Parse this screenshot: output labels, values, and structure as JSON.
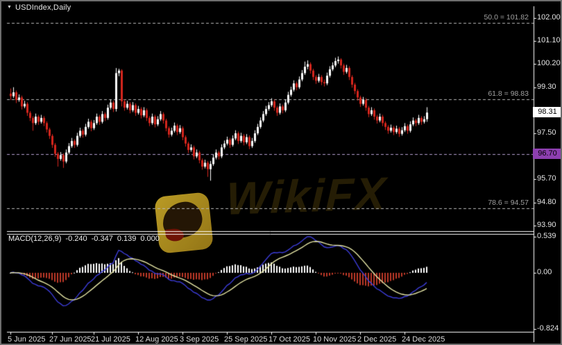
{
  "window": {
    "title": "USDIndex,Daily",
    "dropdown_icon": "▼"
  },
  "watermark": {
    "text": "WikiFX"
  },
  "colors": {
    "background": "#000000",
    "frame": "#6e6e6e",
    "panel_border": "#ffffff",
    "bull": "#ffffff",
    "bear": "#d6261d",
    "fib_line": "#b8b8b8",
    "fib_text": "#a0a0a0",
    "level_line": "#b49fd0",
    "level_badge_bg": "#8d3fb0",
    "price_badge_bg": "#ffffff",
    "axis_text": "#e4e4e4",
    "macd_line": "#3c3cd8",
    "macd_signal": "#e6e6a6",
    "hist_pos": "#ffffff",
    "hist_neg": "#bf3a28"
  },
  "chart_data": {
    "type": "candlestick",
    "symbol": "USDIndex",
    "timeframe": "Daily",
    "price_axis_ticks": [
      {
        "text": "102.00",
        "price": 102.0
      },
      {
        "text": "101.10",
        "price": 101.1
      },
      {
        "text": "100.20",
        "price": 100.2
      },
      {
        "text": "99.30",
        "price": 99.3
      },
      {
        "text": "97.50",
        "price": 97.5
      },
      {
        "text": "96.60",
        "price": 96.6
      },
      {
        "text": "95.70",
        "price": 95.7
      },
      {
        "text": "94.80",
        "price": 94.8
      },
      {
        "text": "93.90",
        "price": 93.9
      }
    ],
    "time_axis_ticks": [
      {
        "text": "5 Jun 2025",
        "index": 0
      },
      {
        "text": "27 Jun 2025",
        "index": 15
      },
      {
        "text": "21 Jul 2025",
        "index": 30
      },
      {
        "text": "12 Aug 2025",
        "index": 46
      },
      {
        "text": "3 Sep 2025",
        "index": 62
      },
      {
        "text": "25 Sep 2025",
        "index": 78
      },
      {
        "text": "17 Oct 2025",
        "index": 94
      },
      {
        "text": "10 Nov 2025",
        "index": 110
      },
      {
        "text": "2 Dec 2025",
        "index": 126
      },
      {
        "text": "24 Dec 2025",
        "index": 142
      }
    ],
    "fib_levels": [
      {
        "text": "50.0 = 101.82",
        "price": 101.82
      },
      {
        "text": "61.8 = 98.83",
        "price": 98.83
      },
      {
        "text": "78.6 = 94.57",
        "price": 94.57
      }
    ],
    "level_line": {
      "text": "96.70",
      "price": 96.7
    },
    "current_price": {
      "text": "98.31",
      "price": 98.31
    },
    "ylim": [
      93.7,
      102.14
    ],
    "candles": [
      [
        99.05,
        99.25,
        98.8,
        98.95
      ],
      [
        98.95,
        99.3,
        98.88,
        99.1
      ],
      [
        99.1,
        99.17,
        98.68,
        98.8
      ],
      [
        98.8,
        99.02,
        98.73,
        98.9
      ],
      [
        98.9,
        98.97,
        98.43,
        98.55
      ],
      [
        98.55,
        98.77,
        98.48,
        98.65
      ],
      [
        98.65,
        98.72,
        98.18,
        98.3
      ],
      [
        98.3,
        98.37,
        97.98,
        98.1
      ],
      [
        98.1,
        98.17,
        97.6,
        97.9
      ],
      [
        97.9,
        98.27,
        97.83,
        98.15
      ],
      [
        98.15,
        98.22,
        97.83,
        97.95
      ],
      [
        97.95,
        98.22,
        97.88,
        98.1
      ],
      [
        98.1,
        98.17,
        97.78,
        97.9
      ],
      [
        97.9,
        97.97,
        97.53,
        97.65
      ],
      [
        97.65,
        97.72,
        97.28,
        97.4
      ],
      [
        97.4,
        97.47,
        96.93,
        97.05
      ],
      [
        97.05,
        97.12,
        96.58,
        96.7
      ],
      [
        96.7,
        96.77,
        96.2,
        96.5
      ],
      [
        96.5,
        96.77,
        96.43,
        96.65
      ],
      [
        96.65,
        96.72,
        96.15,
        96.4
      ],
      [
        96.4,
        96.87,
        96.33,
        96.75
      ],
      [
        96.75,
        97.12,
        96.68,
        97.0
      ],
      [
        97.0,
        97.32,
        96.93,
        97.2
      ],
      [
        97.2,
        97.27,
        96.93,
        97.05
      ],
      [
        97.05,
        97.52,
        96.98,
        97.4
      ],
      [
        97.4,
        97.72,
        97.33,
        97.6
      ],
      [
        97.6,
        97.67,
        97.33,
        97.45
      ],
      [
        97.45,
        97.87,
        97.38,
        97.75
      ],
      [
        97.75,
        98.07,
        97.68,
        97.95
      ],
      [
        97.95,
        98.02,
        97.58,
        97.7
      ],
      [
        97.7,
        98.02,
        97.63,
        97.9
      ],
      [
        97.9,
        98.27,
        97.83,
        98.15
      ],
      [
        98.15,
        98.22,
        97.83,
        97.95
      ],
      [
        97.95,
        98.37,
        97.88,
        98.25
      ],
      [
        98.25,
        98.32,
        97.98,
        98.1
      ],
      [
        98.1,
        98.62,
        98.03,
        98.5
      ],
      [
        98.5,
        98.82,
        98.43,
        98.7
      ],
      [
        98.7,
        98.77,
        98.33,
        98.45
      ],
      [
        98.45,
        100.05,
        98.35,
        99.85
      ],
      [
        99.85,
        100.02,
        99.73,
        99.95
      ],
      [
        99.95,
        100.0,
        98.55,
        98.75
      ],
      [
        98.75,
        98.82,
        98.38,
        98.5
      ],
      [
        98.5,
        98.77,
        98.43,
        98.65
      ],
      [
        98.65,
        98.72,
        98.28,
        98.4
      ],
      [
        98.4,
        98.72,
        98.33,
        98.6
      ],
      [
        98.6,
        98.67,
        98.18,
        98.3
      ],
      [
        98.3,
        98.57,
        98.23,
        98.45
      ],
      [
        98.45,
        98.52,
        98.08,
        98.2
      ],
      [
        98.2,
        98.52,
        98.13,
        98.4
      ],
      [
        98.4,
        98.47,
        97.98,
        98.1
      ],
      [
        98.1,
        98.17,
        97.78,
        97.9
      ],
      [
        97.9,
        98.27,
        97.83,
        98.15
      ],
      [
        98.15,
        98.22,
        97.73,
        97.85
      ],
      [
        97.85,
        98.17,
        97.78,
        98.05
      ],
      [
        98.05,
        98.37,
        97.98,
        98.25
      ],
      [
        98.25,
        98.32,
        97.88,
        98.0
      ],
      [
        98.0,
        98.07,
        97.58,
        97.7
      ],
      [
        97.7,
        97.77,
        97.33,
        97.45
      ],
      [
        97.45,
        97.72,
        97.38,
        97.6
      ],
      [
        97.6,
        97.92,
        97.53,
        97.8
      ],
      [
        97.8,
        97.87,
        97.43,
        97.55
      ],
      [
        97.55,
        97.82,
        97.48,
        97.7
      ],
      [
        97.7,
        97.77,
        97.23,
        97.35
      ],
      [
        97.35,
        97.42,
        96.98,
        97.1
      ],
      [
        97.1,
        97.17,
        96.73,
        96.85
      ],
      [
        96.85,
        97.07,
        96.78,
        96.95
      ],
      [
        96.95,
        97.02,
        96.48,
        96.6
      ],
      [
        96.6,
        96.87,
        96.53,
        96.75
      ],
      [
        96.75,
        96.82,
        96.33,
        96.45
      ],
      [
        96.45,
        96.52,
        96.08,
        96.2
      ],
      [
        96.2,
        96.47,
        96.13,
        96.35
      ],
      [
        96.35,
        96.42,
        95.8,
        96.1
      ],
      [
        96.1,
        96.42,
        95.65,
        96.3
      ],
      [
        96.3,
        96.67,
        96.23,
        96.55
      ],
      [
        96.55,
        96.87,
        96.48,
        96.75
      ],
      [
        96.75,
        96.82,
        96.48,
        96.6
      ],
      [
        96.6,
        97.07,
        96.53,
        96.95
      ],
      [
        96.95,
        97.22,
        96.88,
        97.1
      ],
      [
        97.1,
        97.37,
        97.03,
        97.25
      ],
      [
        97.25,
        97.32,
        96.93,
        97.05
      ],
      [
        97.05,
        97.42,
        96.98,
        97.3
      ],
      [
        97.3,
        97.62,
        97.23,
        97.5
      ],
      [
        97.5,
        97.57,
        97.08,
        97.2
      ],
      [
        97.2,
        97.52,
        97.13,
        97.4
      ],
      [
        97.4,
        97.47,
        97.03,
        97.15
      ],
      [
        97.15,
        97.47,
        97.08,
        97.35
      ],
      [
        97.35,
        97.42,
        96.88,
        97.0
      ],
      [
        97.0,
        97.32,
        96.93,
        97.2
      ],
      [
        97.2,
        97.62,
        97.13,
        97.5
      ],
      [
        97.5,
        97.87,
        97.43,
        97.75
      ],
      [
        97.75,
        98.12,
        97.68,
        98.0
      ],
      [
        98.0,
        98.37,
        97.93,
        98.25
      ],
      [
        98.25,
        98.57,
        98.18,
        98.45
      ],
      [
        98.45,
        98.72,
        98.38,
        98.6
      ],
      [
        98.6,
        98.87,
        98.53,
        98.75
      ],
      [
        98.75,
        98.82,
        98.38,
        98.5
      ],
      [
        98.5,
        98.57,
        98.18,
        98.3
      ],
      [
        98.3,
        98.67,
        98.23,
        98.55
      ],
      [
        98.55,
        98.62,
        98.28,
        98.4
      ],
      [
        98.4,
        98.82,
        98.33,
        98.7
      ],
      [
        98.7,
        99.12,
        98.63,
        99.0
      ],
      [
        99.0,
        99.32,
        98.93,
        99.2
      ],
      [
        99.2,
        99.57,
        99.13,
        99.45
      ],
      [
        99.45,
        99.52,
        99.18,
        99.3
      ],
      [
        99.3,
        99.72,
        99.23,
        99.6
      ],
      [
        99.6,
        99.97,
        99.53,
        99.85
      ],
      [
        99.85,
        100.3,
        99.78,
        100.1
      ],
      [
        100.1,
        100.35,
        100.0,
        100.2
      ],
      [
        100.2,
        100.27,
        99.83,
        99.95
      ],
      [
        99.95,
        100.02,
        99.58,
        99.7
      ],
      [
        99.7,
        99.77,
        99.43,
        99.55
      ],
      [
        99.55,
        99.82,
        99.48,
        99.7
      ],
      [
        99.7,
        99.77,
        99.38,
        99.5
      ],
      [
        99.5,
        99.6,
        99.33,
        99.45
      ],
      [
        99.45,
        99.87,
        99.38,
        99.75
      ],
      [
        99.75,
        100.12,
        99.68,
        100.0
      ],
      [
        100.0,
        100.27,
        99.93,
        100.15
      ],
      [
        100.15,
        100.45,
        100.08,
        100.32
      ],
      [
        100.32,
        100.5,
        100.22,
        100.38
      ],
      [
        100.38,
        100.43,
        100.03,
        100.15
      ],
      [
        100.15,
        100.22,
        99.78,
        99.9
      ],
      [
        99.9,
        100.17,
        99.83,
        100.05
      ],
      [
        100.05,
        100.12,
        99.58,
        99.7
      ],
      [
        99.7,
        99.77,
        99.28,
        99.4
      ],
      [
        99.4,
        99.47,
        99.03,
        99.15
      ],
      [
        99.15,
        99.22,
        98.78,
        98.9
      ],
      [
        98.9,
        98.97,
        98.53,
        98.65
      ],
      [
        98.65,
        98.92,
        98.58,
        98.8
      ],
      [
        98.8,
        98.87,
        98.38,
        98.5
      ],
      [
        98.5,
        98.57,
        98.13,
        98.25
      ],
      [
        98.25,
        98.52,
        98.18,
        98.4
      ],
      [
        98.4,
        98.47,
        98.03,
        98.15
      ],
      [
        98.15,
        98.22,
        97.88,
        98.0
      ],
      [
        98.0,
        98.27,
        97.93,
        98.15
      ],
      [
        98.15,
        98.22,
        97.78,
        97.9
      ],
      [
        97.9,
        97.97,
        97.63,
        97.75
      ],
      [
        97.75,
        97.82,
        97.48,
        97.6
      ],
      [
        97.6,
        97.84,
        97.53,
        97.72
      ],
      [
        97.72,
        97.79,
        97.43,
        97.55
      ],
      [
        97.55,
        97.8,
        97.48,
        97.68
      ],
      [
        97.68,
        97.75,
        97.36,
        97.48
      ],
      [
        97.48,
        97.74,
        97.41,
        97.62
      ],
      [
        97.62,
        97.9,
        97.55,
        97.78
      ],
      [
        97.78,
        97.85,
        97.48,
        97.6
      ],
      [
        97.6,
        97.97,
        97.53,
        97.85
      ],
      [
        97.85,
        98.12,
        97.78,
        98.0
      ],
      [
        98.0,
        98.07,
        97.78,
        97.9
      ],
      [
        97.9,
        98.22,
        97.83,
        98.1
      ],
      [
        98.1,
        98.17,
        97.83,
        97.95
      ],
      [
        97.95,
        98.17,
        97.88,
        98.05
      ],
      [
        98.05,
        98.52,
        97.95,
        98.31
      ]
    ],
    "macd": {
      "label": "MACD(12,26,9)",
      "fast": 12,
      "slow": 26,
      "signal": 9,
      "display_values": [
        "-0.240",
        "-0.347",
        "0.139",
        "0.000"
      ],
      "axis_ticks": [
        {
          "text": "0.539",
          "value": 0.539
        },
        {
          "text": "0.00",
          "value": 0.0
        },
        {
          "text": "-0.824",
          "value": -0.824
        }
      ]
    }
  }
}
